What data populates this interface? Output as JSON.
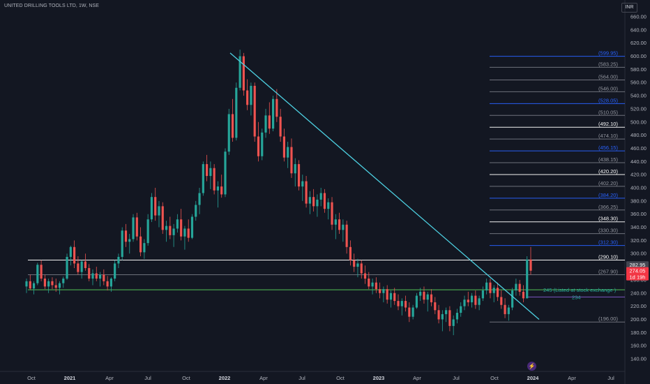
{
  "header": {
    "title": "UNITED DRILLING TOOLS LTD, 1W, NSE",
    "currency": "INR"
  },
  "icons": {
    "event_marker": "lightning-icon"
  },
  "colors": {
    "up": "#26a69a",
    "down": "#ef5350",
    "trendline": "#4dd0e1",
    "support": "#4caf50",
    "blue_level": "#2962ff",
    "white_level": "#ffffff",
    "grey_level": "#9598a1"
  },
  "chart_data": {
    "type": "candlestick",
    "title": "UNITED DRILLING TOOLS LTD, 1W, NSE",
    "ylim": [
      130,
      670
    ],
    "y_ticks": [
      140,
      160,
      180,
      200,
      220,
      240,
      260,
      280,
      300,
      320,
      340,
      360,
      380,
      400,
      420,
      440,
      460,
      480,
      500,
      520,
      540,
      560,
      580,
      600,
      620,
      640,
      660
    ],
    "x_ticks": [
      {
        "label": "Oct",
        "bold": false
      },
      {
        "label": "2021",
        "bold": true
      },
      {
        "label": "Apr",
        "bold": false
      },
      {
        "label": "Jul",
        "bold": false
      },
      {
        "label": "Oct",
        "bold": false
      },
      {
        "label": "2022",
        "bold": true
      },
      {
        "label": "Apr",
        "bold": false
      },
      {
        "label": "Jul",
        "bold": false
      },
      {
        "label": "Oct",
        "bold": false
      },
      {
        "label": "2023",
        "bold": true
      },
      {
        "label": "Apr",
        "bold": false
      },
      {
        "label": "Jul",
        "bold": false
      },
      {
        "label": "Oct",
        "bold": false
      },
      {
        "label": "2024",
        "bold": true
      },
      {
        "label": "Apr",
        "bold": false
      },
      {
        "label": "Jul",
        "bold": false
      }
    ],
    "levels": [
      {
        "value": 599.95,
        "label": "(599.95)",
        "style": "blue"
      },
      {
        "value": 583.25,
        "label": "(583.25)",
        "style": "grey"
      },
      {
        "value": 564.0,
        "label": "(564.00)",
        "style": "grey"
      },
      {
        "value": 546.0,
        "label": "(546.00)",
        "style": "grey"
      },
      {
        "value": 528.05,
        "label": "(528.05)",
        "style": "blue"
      },
      {
        "value": 510.05,
        "label": "(510.05)",
        "style": "grey"
      },
      {
        "value": 492.1,
        "label": "(492.10)",
        "style": "white"
      },
      {
        "value": 474.1,
        "label": "(474.10)",
        "style": "grey"
      },
      {
        "value": 456.15,
        "label": "(456.15)",
        "style": "blue"
      },
      {
        "value": 438.15,
        "label": "(438.15)",
        "style": "grey"
      },
      {
        "value": 420.2,
        "label": "(420.20)",
        "style": "white"
      },
      {
        "value": 402.2,
        "label": "(402.20)",
        "style": "grey"
      },
      {
        "value": 384.2,
        "label": "(384.20)",
        "style": "blue"
      },
      {
        "value": 366.25,
        "label": "(366.25)",
        "style": "grey"
      },
      {
        "value": 348.3,
        "label": "(348.30)",
        "style": "white"
      },
      {
        "value": 330.3,
        "label": "(330.30)",
        "style": "grey"
      },
      {
        "value": 312.3,
        "label": "(312.30)",
        "style": "blue"
      },
      {
        "value": 290.1,
        "label": "(290.10)",
        "style": "white"
      },
      {
        "value": 267.9,
        "label": "(267.90)",
        "style": "grey"
      },
      {
        "value": 196.0,
        "label": "(196.00)",
        "style": "grey"
      }
    ],
    "support_line": {
      "value": 245,
      "label": "245  (Listed at stock exchange )"
    },
    "low_line": {
      "value": 234,
      "label": "234"
    },
    "price_badges": [
      {
        "value": 282.95,
        "label": "282.95",
        "style": "grey"
      },
      {
        "value": 274.05,
        "label": "274.05",
        "style": "red"
      },
      {
        "value": 266.0,
        "label": "1d 19h",
        "style": "red"
      }
    ],
    "trendline": {
      "from": [
        0,
        605
      ],
      "to": [
        1,
        200
      ]
    },
    "candles": [
      [
        250,
        262,
        240,
        258
      ],
      [
        258,
        268,
        245,
        247
      ],
      [
        247,
        258,
        238,
        255
      ],
      [
        255,
        286,
        252,
        283
      ],
      [
        283,
        290,
        258,
        262
      ],
      [
        262,
        268,
        246,
        250
      ],
      [
        250,
        262,
        240,
        258
      ],
      [
        258,
        264,
        246,
        252
      ],
      [
        252,
        262,
        242,
        248
      ],
      [
        248,
        258,
        238,
        255
      ],
      [
        255,
        265,
        248,
        262
      ],
      [
        262,
        300,
        260,
        295
      ],
      [
        295,
        312,
        282,
        310
      ],
      [
        310,
        320,
        278,
        285
      ],
      [
        285,
        296,
        268,
        272
      ],
      [
        272,
        290,
        262,
        288
      ],
      [
        288,
        300,
        274,
        278
      ],
      [
        278,
        284,
        258,
        262
      ],
      [
        262,
        276,
        252,
        270
      ],
      [
        270,
        280,
        258,
        262
      ],
      [
        262,
        272,
        250,
        268
      ],
      [
        268,
        276,
        252,
        258
      ],
      [
        258,
        266,
        244,
        250
      ],
      [
        250,
        264,
        242,
        262
      ],
      [
        262,
        290,
        258,
        285
      ],
      [
        285,
        300,
        278,
        295
      ],
      [
        295,
        340,
        290,
        335
      ],
      [
        335,
        345,
        310,
        318
      ],
      [
        318,
        330,
        300,
        322
      ],
      [
        322,
        360,
        318,
        355
      ],
      [
        355,
        362,
        320,
        326
      ],
      [
        326,
        340,
        296,
        302
      ],
      [
        302,
        322,
        292,
        316
      ],
      [
        316,
        360,
        312,
        352
      ],
      [
        352,
        392,
        348,
        386
      ],
      [
        386,
        400,
        350,
        358
      ],
      [
        358,
        380,
        340,
        372
      ],
      [
        372,
        378,
        330,
        336
      ],
      [
        336,
        350,
        318,
        342
      ],
      [
        342,
        356,
        322,
        328
      ],
      [
        328,
        345,
        310,
        338
      ],
      [
        338,
        360,
        332,
        352
      ],
      [
        352,
        368,
        320,
        326
      ],
      [
        326,
        342,
        306,
        338
      ],
      [
        338,
        352,
        318,
        324
      ],
      [
        324,
        360,
        322,
        356
      ],
      [
        356,
        380,
        350,
        374
      ],
      [
        374,
        400,
        360,
        392
      ],
      [
        392,
        440,
        388,
        436
      ],
      [
        436,
        450,
        410,
        418
      ],
      [
        418,
        440,
        398,
        430
      ],
      [
        430,
        436,
        390,
        396
      ],
      [
        396,
        410,
        370,
        402
      ],
      [
        402,
        420,
        385,
        390
      ],
      [
        390,
        460,
        386,
        455
      ],
      [
        455,
        520,
        450,
        512
      ],
      [
        512,
        535,
        470,
        476
      ],
      [
        476,
        560,
        472,
        552
      ],
      [
        552,
        610,
        548,
        600
      ],
      [
        600,
        605,
        540,
        548
      ],
      [
        548,
        565,
        518,
        526
      ],
      [
        526,
        560,
        510,
        555
      ],
      [
        555,
        560,
        470,
        478
      ],
      [
        478,
        500,
        440,
        448
      ],
      [
        448,
        490,
        442,
        484
      ],
      [
        484,
        520,
        476,
        510
      ],
      [
        510,
        530,
        482,
        490
      ],
      [
        490,
        540,
        486,
        535
      ],
      [
        535,
        550,
        500,
        508
      ],
      [
        508,
        520,
        470,
        478
      ],
      [
        478,
        490,
        440,
        446
      ],
      [
        446,
        470,
        430,
        462
      ],
      [
        462,
        475,
        415,
        422
      ],
      [
        422,
        445,
        402,
        436
      ],
      [
        436,
        442,
        396,
        402
      ],
      [
        402,
        420,
        380,
        410
      ],
      [
        410,
        418,
        370,
        376
      ],
      [
        376,
        395,
        360,
        386
      ],
      [
        386,
        398,
        364,
        372
      ],
      [
        372,
        390,
        356,
        382
      ],
      [
        382,
        400,
        372,
        392
      ],
      [
        392,
        398,
        362,
        368
      ],
      [
        368,
        384,
        352,
        378
      ],
      [
        378,
        386,
        336,
        344
      ],
      [
        344,
        360,
        322,
        352
      ],
      [
        352,
        362,
        330,
        336
      ],
      [
        336,
        352,
        318,
        344
      ],
      [
        344,
        350,
        300,
        310
      ],
      [
        310,
        320,
        282,
        290
      ],
      [
        290,
        300,
        272,
        280
      ],
      [
        280,
        292,
        264,
        285
      ],
      [
        285,
        290,
        262,
        270
      ],
      [
        270,
        282,
        254,
        262
      ],
      [
        262,
        272,
        246,
        250
      ],
      [
        250,
        262,
        238,
        256
      ],
      [
        256,
        264,
        240,
        246
      ],
      [
        246,
        256,
        232,
        240
      ],
      [
        240,
        250,
        226,
        246
      ],
      [
        246,
        252,
        224,
        230
      ],
      [
        230,
        244,
        218,
        240
      ],
      [
        240,
        248,
        222,
        228
      ],
      [
        228,
        238,
        214,
        220
      ],
      [
        220,
        232,
        206,
        228
      ],
      [
        228,
        236,
        212,
        218
      ],
      [
        218,
        226,
        196,
        204
      ],
      [
        204,
        222,
        200,
        218
      ],
      [
        218,
        240,
        216,
        236
      ],
      [
        236,
        248,
        228,
        242
      ],
      [
        242,
        250,
        224,
        230
      ],
      [
        230,
        242,
        212,
        238
      ],
      [
        238,
        246,
        220,
        226
      ],
      [
        226,
        234,
        208,
        214
      ],
      [
        214,
        222,
        194,
        200
      ],
      [
        200,
        214,
        182,
        208
      ],
      [
        208,
        218,
        196,
        214
      ],
      [
        214,
        220,
        182,
        190
      ],
      [
        190,
        206,
        176,
        200
      ],
      [
        200,
        216,
        194,
        210
      ],
      [
        210,
        226,
        204,
        220
      ],
      [
        220,
        236,
        214,
        230
      ],
      [
        230,
        242,
        220,
        226
      ],
      [
        226,
        240,
        218,
        236
      ],
      [
        236,
        244,
        216,
        222
      ],
      [
        222,
        236,
        214,
        232
      ],
      [
        232,
        250,
        228,
        244
      ],
      [
        244,
        262,
        238,
        256
      ],
      [
        256,
        262,
        232,
        240
      ],
      [
        240,
        252,
        226,
        248
      ],
      [
        248,
        256,
        228,
        234
      ],
      [
        234,
        244,
        216,
        222
      ],
      [
        222,
        232,
        202,
        208
      ],
      [
        208,
        222,
        198,
        218
      ],
      [
        218,
        248,
        214,
        244
      ],
      [
        244,
        262,
        236,
        254
      ],
      [
        254,
        260,
        236,
        242
      ],
      [
        242,
        252,
        226,
        232
      ],
      [
        232,
        296,
        232,
        291
      ],
      [
        291,
        310,
        268,
        274
      ]
    ]
  }
}
